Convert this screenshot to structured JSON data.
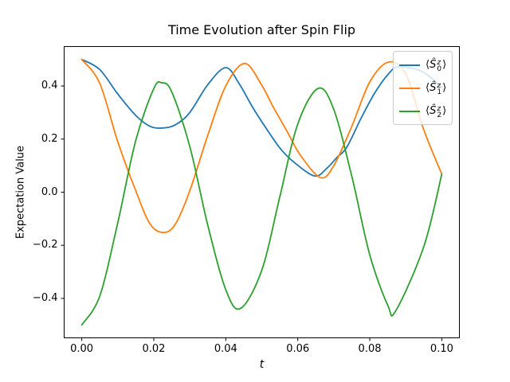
{
  "chart_data": {
    "type": "line",
    "title": "Time Evolution after Spin Flip",
    "xlabel": "t",
    "ylabel": "Expectation Value",
    "grid": false,
    "legend_position": "upper right",
    "xlim": [
      -0.005,
      0.105
    ],
    "ylim": [
      -0.55,
      0.55
    ],
    "xticks": {
      "values": [
        0.0,
        0.02,
        0.04,
        0.06,
        0.08,
        0.1
      ],
      "labels": [
        "0.00",
        "0.02",
        "0.04",
        "0.06",
        "0.08",
        "0.10"
      ]
    },
    "yticks": {
      "values": [
        0.4,
        0.2,
        0.0,
        -0.2,
        -0.4
      ],
      "labels": [
        "0.4",
        "0.2",
        "0.0",
        "−0.2",
        "−0.4"
      ]
    },
    "series": [
      {
        "name": "⟨Ŝ₀ᶻ⟩",
        "label_parts": {
          "prefix": "⟨",
          "symbol": "Ŝ",
          "sup": "z",
          "sub": "0",
          "suffix": "⟩"
        },
        "color": "#1f77b4",
        "points": [
          [
            0.0,
            0.5
          ],
          [
            0.005,
            0.462
          ],
          [
            0.01,
            0.37
          ],
          [
            0.015,
            0.289
          ],
          [
            0.019,
            0.248
          ],
          [
            0.0225,
            0.242
          ],
          [
            0.026,
            0.254
          ],
          [
            0.03,
            0.3
          ],
          [
            0.035,
            0.405
          ],
          [
            0.04,
            0.469
          ],
          [
            0.0437,
            0.409
          ],
          [
            0.0475,
            0.319
          ],
          [
            0.0518,
            0.229
          ],
          [
            0.0554,
            0.16
          ],
          [
            0.0592,
            0.11
          ],
          [
            0.0647,
            0.061
          ],
          [
            0.068,
            0.089
          ],
          [
            0.0709,
            0.131
          ],
          [
            0.0736,
            0.169
          ],
          [
            0.0776,
            0.279
          ],
          [
            0.0813,
            0.372
          ],
          [
            0.0851,
            0.444
          ],
          [
            0.088,
            0.472
          ],
          [
            0.0946,
            0.454
          ],
          [
            0.1,
            0.394
          ]
        ]
      },
      {
        "name": "⟨Ŝ₁ᶻ⟩",
        "label_parts": {
          "prefix": "⟨",
          "symbol": "Ŝ",
          "sup": "z",
          "sub": "1",
          "suffix": "⟩"
        },
        "color": "#ff7f0e",
        "points": [
          [
            0.0,
            0.5
          ],
          [
            0.005,
            0.41
          ],
          [
            0.01,
            0.19
          ],
          [
            0.015,
            0.005
          ],
          [
            0.019,
            -0.12
          ],
          [
            0.0227,
            -0.152
          ],
          [
            0.026,
            -0.12
          ],
          [
            0.03,
            0.005
          ],
          [
            0.035,
            0.214
          ],
          [
            0.04,
            0.4
          ],
          [
            0.0452,
            0.485
          ],
          [
            0.0497,
            0.41
          ],
          [
            0.0532,
            0.32
          ],
          [
            0.057,
            0.23
          ],
          [
            0.0607,
            0.14
          ],
          [
            0.0663,
            0.055
          ],
          [
            0.07,
            0.1
          ],
          [
            0.075,
            0.248
          ],
          [
            0.08,
            0.415
          ],
          [
            0.0852,
            0.49
          ],
          [
            0.09,
            0.445
          ],
          [
            0.095,
            0.235
          ],
          [
            0.1,
            0.068
          ]
        ]
      },
      {
        "name": "⟨Ŝ₂ᶻ⟩",
        "label_parts": {
          "prefix": "⟨",
          "symbol": "Ŝ",
          "sup": "z",
          "sub": "2",
          "suffix": "⟩"
        },
        "color": "#2ca02c",
        "points": [
          [
            0.0,
            -0.5
          ],
          [
            0.005,
            -0.391
          ],
          [
            0.01,
            -0.115
          ],
          [
            0.015,
            0.195
          ],
          [
            0.02,
            0.39
          ],
          [
            0.0222,
            0.412
          ],
          [
            0.025,
            0.378
          ],
          [
            0.03,
            0.173
          ],
          [
            0.035,
            -0.124
          ],
          [
            0.04,
            -0.367
          ],
          [
            0.0441,
            -0.438
          ],
          [
            0.05,
            -0.294
          ],
          [
            0.055,
            -0.018
          ],
          [
            0.06,
            0.257
          ],
          [
            0.0657,
            0.391
          ],
          [
            0.07,
            0.311
          ],
          [
            0.075,
            0.06
          ],
          [
            0.08,
            -0.236
          ],
          [
            0.085,
            -0.426
          ],
          [
            0.0872,
            -0.447
          ],
          [
            0.095,
            -0.205
          ],
          [
            0.1,
            0.068
          ]
        ]
      }
    ],
    "spine_color": "#000000"
  }
}
